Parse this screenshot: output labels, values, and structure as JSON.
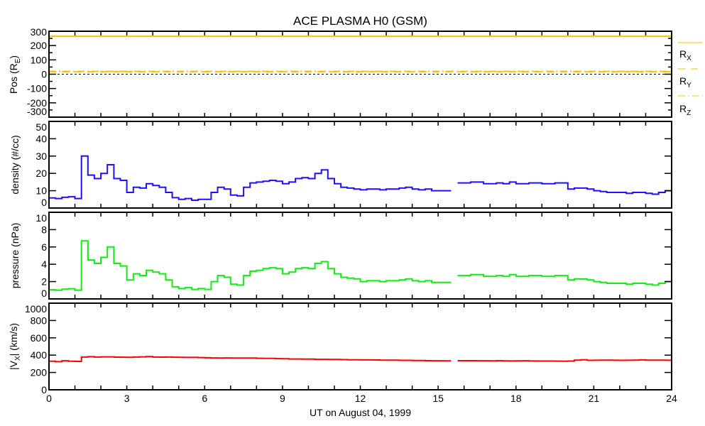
{
  "chart_data": [
    {
      "type": "line",
      "title": "ACE PLASMA H0 (GSM)",
      "xlabel": "UT on August 04, 1999",
      "ylabel": "Pos (R",
      "ylabel_sub": "E",
      "ylabel_end": ")",
      "xlim": [
        0,
        24
      ],
      "ylim": [
        -300,
        300
      ],
      "yticks": [
        -300,
        -200,
        -100,
        0,
        100,
        200,
        300
      ],
      "zero_line": true,
      "legend": [
        {
          "name": "R",
          "sub": "X",
          "style": "solid"
        },
        {
          "name": "R",
          "sub": "Y",
          "style": "dashed"
        },
        {
          "name": "R",
          "sub": "Z",
          "style": "dashdot"
        }
      ],
      "legend_placement": "right",
      "series": [
        {
          "name": "Rx",
          "color": "#f5c400",
          "style": "solid",
          "x": [
            0,
            24
          ],
          "y": [
            265,
            265
          ]
        },
        {
          "name": "Ry",
          "color": "#f5c400",
          "style": "dashed",
          "x": [
            0,
            24
          ],
          "y": [
            17,
            17
          ]
        },
        {
          "name": "Rz",
          "color": "#f5c400",
          "style": "dashdot",
          "x": [
            0,
            24
          ],
          "y": [
            20,
            20
          ]
        }
      ]
    },
    {
      "type": "line",
      "ylabel": "density (#/cc)",
      "xlim": [
        0,
        24
      ],
      "ylim": [
        0,
        50
      ],
      "yticks": [
        0,
        10,
        20,
        30,
        40,
        50
      ],
      "x_step_hours": 0.25,
      "series": [
        {
          "name": "density",
          "color": "#1e10ff",
          "values": [
            5.8,
            5.5,
            6.2,
            6.5,
            5.5,
            30,
            19,
            17,
            20,
            25,
            17,
            16,
            9,
            12,
            11.5,
            14,
            13,
            12,
            9,
            6,
            5,
            5.5,
            4.5,
            5,
            5,
            9,
            12,
            11,
            7.5,
            7,
            12,
            14.5,
            15,
            15.5,
            16,
            15.5,
            14,
            15,
            17,
            17.5,
            17,
            20,
            22,
            17,
            14,
            12,
            11.5,
            11,
            10.5,
            11,
            11,
            10.5,
            11,
            11,
            11.5,
            12,
            11,
            10.5,
            11,
            10,
            10,
            10,
            null,
            14.5,
            14.5,
            15,
            15,
            14,
            14,
            14.5,
            14,
            15,
            14,
            14,
            14.5,
            14.5,
            14,
            14,
            14.5,
            14.5,
            11,
            11.5,
            11.5,
            11,
            10,
            9.5,
            9,
            9,
            9,
            8.5,
            9,
            9,
            8.5,
            8,
            9,
            10,
            10.5
          ]
        }
      ]
    },
    {
      "type": "line",
      "ylabel": "pressure (nPa)",
      "xlim": [
        0,
        24
      ],
      "ylim": [
        0,
        10
      ],
      "yticks": [
        0,
        2,
        4,
        6,
        8,
        10
      ],
      "x_step_hours": 0.25,
      "series": [
        {
          "name": "pressure",
          "color": "#10ee10",
          "values": [
            1.06,
            1.0,
            1.13,
            1.18,
            1.0,
            6.7,
            4.5,
            4.1,
            4.8,
            6.0,
            4.1,
            3.8,
            2.2,
            2.9,
            2.7,
            3.3,
            3.1,
            2.9,
            2.2,
            1.4,
            1.2,
            1.3,
            1.1,
            1.2,
            1.1,
            2.0,
            2.7,
            2.5,
            1.7,
            1.6,
            2.7,
            3.2,
            3.3,
            3.5,
            3.6,
            3.5,
            2.9,
            3.1,
            3.5,
            3.6,
            3.5,
            4.1,
            4.3,
            3.5,
            2.9,
            2.5,
            2.4,
            2.3,
            2.0,
            2.1,
            2.1,
            2.0,
            2.1,
            2.1,
            2.2,
            2.3,
            2.1,
            2.0,
            2.1,
            1.9,
            1.9,
            1.9,
            null,
            2.7,
            2.7,
            2.8,
            2.8,
            2.6,
            2.6,
            2.7,
            2.6,
            2.8,
            2.6,
            2.6,
            2.7,
            2.7,
            2.6,
            2.6,
            2.7,
            2.7,
            2.2,
            2.3,
            2.3,
            2.2,
            2.0,
            1.9,
            1.8,
            1.8,
            1.8,
            1.7,
            1.8,
            1.8,
            1.7,
            1.6,
            1.8,
            2.0,
            2.1
          ]
        }
      ]
    },
    {
      "type": "line",
      "ylabel": "|V",
      "ylabel_sub": "X",
      "ylabel_end": "| (km/s)",
      "xlim": [
        0,
        24
      ],
      "ylim": [
        0,
        1000
      ],
      "yticks": [
        0,
        200,
        400,
        600,
        800,
        1000
      ],
      "x_step_hours": 0.25,
      "xticks": [
        0,
        3,
        6,
        9,
        12,
        15,
        18,
        21,
        24
      ],
      "series": [
        {
          "name": "|Vx|",
          "color": "#ff0000",
          "values": [
            330,
            325,
            335,
            330,
            328,
            378,
            382,
            378,
            380,
            380,
            377,
            376,
            375,
            378,
            380,
            383,
            378,
            377,
            378,
            376,
            375,
            374,
            374,
            372,
            370,
            368,
            366,
            368,
            366,
            366,
            367,
            366,
            364,
            362,
            362,
            360,
            358,
            356,
            356,
            355,
            354,
            352,
            352,
            350,
            350,
            348,
            346,
            346,
            345,
            345,
            344,
            343,
            342,
            342,
            340,
            340,
            338,
            338,
            336,
            335,
            335,
            334,
            null,
            336,
            336,
            336,
            335,
            335,
            334,
            336,
            334,
            333,
            334,
            335,
            333,
            332,
            332,
            332,
            331,
            330,
            332,
            343,
            346,
            340,
            341,
            342,
            342,
            341,
            340,
            341,
            342,
            345,
            343,
            342,
            342,
            341,
            340
          ]
        }
      ]
    }
  ]
}
